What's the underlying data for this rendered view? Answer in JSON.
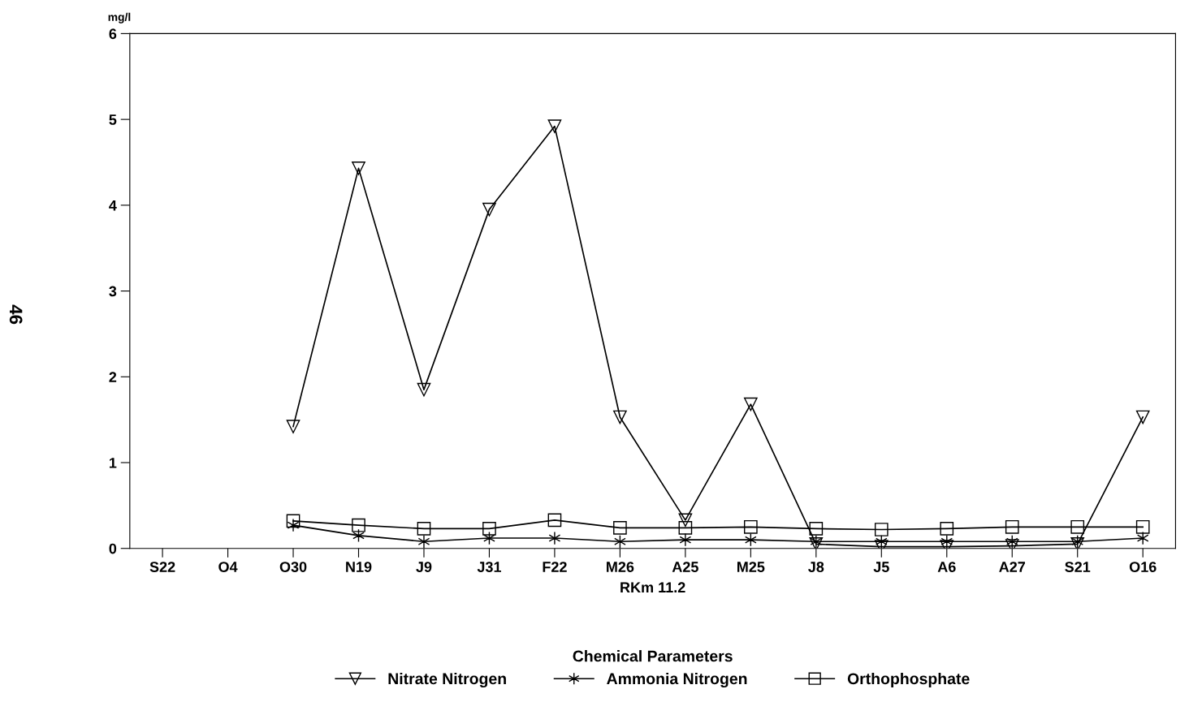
{
  "chart_data": {
    "type": "line",
    "categories": [
      "S22",
      "O4",
      "O30",
      "N19",
      "J9",
      "J31",
      "F22",
      "M26",
      "A25",
      "M25",
      "J8",
      "J5",
      "A6",
      "A27",
      "S21",
      "O16"
    ],
    "series": [
      {
        "name": "Nitrate Nitrogen",
        "color": "#000000",
        "marker": "triangle",
        "values": [
          null,
          null,
          1.42,
          4.43,
          1.85,
          3.95,
          4.92,
          1.53,
          0.33,
          1.68,
          0.05,
          0.02,
          0.02,
          0.03,
          0.05,
          1.53
        ]
      },
      {
        "name": "Ammonia Nitrogen",
        "color": "#000000",
        "marker": "cross",
        "values": [
          null,
          null,
          0.27,
          0.15,
          0.08,
          0.12,
          0.12,
          0.08,
          0.1,
          0.1,
          0.08,
          0.08,
          0.08,
          0.08,
          0.08,
          0.12
        ]
      },
      {
        "name": "Orthophosphate",
        "color": "#000000",
        "marker": "square",
        "values": [
          null,
          null,
          0.32,
          0.27,
          0.23,
          0.23,
          0.33,
          0.24,
          0.24,
          0.25,
          0.23,
          0.22,
          0.23,
          0.25,
          0.25,
          0.25
        ]
      }
    ],
    "ylabel": "mg/l",
    "xlabel": "RKm 11.2",
    "legend_title": "Chemical Parameters",
    "ylim": [
      0,
      6
    ],
    "yticks": [
      0,
      1,
      2,
      3,
      4,
      5,
      6
    ],
    "legend": "bottom",
    "grid": false,
    "line_style": "solid",
    "annotations": [
      "46"
    ]
  }
}
